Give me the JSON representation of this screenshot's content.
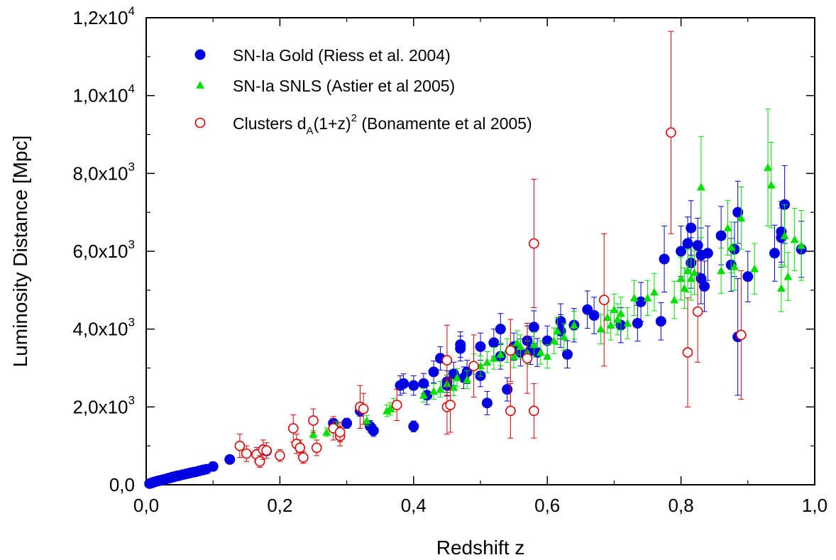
{
  "chart_data": {
    "type": "scatter",
    "xlabel": "Redshift z",
    "ylabel": "Luminosity Distance [Mpc]",
    "xlim": [
      0,
      1.0
    ],
    "ylim": [
      0,
      12000
    ],
    "x_ticks": [
      {
        "value": 0.0,
        "label": "0,0"
      },
      {
        "value": 0.2,
        "label": "0,2"
      },
      {
        "value": 0.4,
        "label": "0,4"
      },
      {
        "value": 0.6,
        "label": "0,6"
      },
      {
        "value": 0.8,
        "label": "0,8"
      },
      {
        "value": 1.0,
        "label": "1,0"
      }
    ],
    "y_ticks": [
      {
        "value": 0,
        "mantissa": "0,0",
        "exponent": ""
      },
      {
        "value": 2000,
        "mantissa": "2,0x10",
        "exponent": "3"
      },
      {
        "value": 4000,
        "mantissa": "4,0x10",
        "exponent": "3"
      },
      {
        "value": 6000,
        "mantissa": "6,0x10",
        "exponent": "3"
      },
      {
        "value": 8000,
        "mantissa": "8,0x10",
        "exponent": "3"
      },
      {
        "value": 10000,
        "mantissa": "1,0x10",
        "exponent": "4"
      },
      {
        "value": 12000,
        "mantissa": "1,2x10",
        "exponent": "4"
      }
    ],
    "grid": false,
    "legend_position": "top-left",
    "series": [
      {
        "name": "SN-Ia Gold (Riess et al. 2004)",
        "marker": "filled-circle",
        "color": "#0000e0",
        "points": [
          [
            0.005,
            30,
            5
          ],
          [
            0.008,
            45,
            5
          ],
          [
            0.01,
            60,
            5
          ],
          [
            0.012,
            70,
            5
          ],
          [
            0.015,
            85,
            5
          ],
          [
            0.018,
            100,
            6
          ],
          [
            0.02,
            105,
            6
          ],
          [
            0.022,
            115,
            6
          ],
          [
            0.025,
            130,
            7
          ],
          [
            0.028,
            140,
            7
          ],
          [
            0.03,
            150,
            7
          ],
          [
            0.032,
            160,
            8
          ],
          [
            0.035,
            175,
            8
          ],
          [
            0.038,
            185,
            9
          ],
          [
            0.04,
            200,
            9
          ],
          [
            0.043,
            210,
            10
          ],
          [
            0.046,
            225,
            10
          ],
          [
            0.05,
            240,
            11
          ],
          [
            0.055,
            260,
            12
          ],
          [
            0.06,
            280,
            13
          ],
          [
            0.065,
            300,
            14
          ],
          [
            0.07,
            320,
            15
          ],
          [
            0.075,
            335,
            15
          ],
          [
            0.08,
            360,
            16
          ],
          [
            0.085,
            380,
            17
          ],
          [
            0.09,
            400,
            18
          ],
          [
            0.1,
            470,
            20
          ],
          [
            0.125,
            650,
            40
          ],
          [
            0.175,
            900,
            60
          ],
          [
            0.18,
            870,
            60
          ],
          [
            0.28,
            1580,
            120
          ],
          [
            0.3,
            1580,
            130
          ],
          [
            0.32,
            1900,
            140
          ],
          [
            0.335,
            1500,
            150
          ],
          [
            0.34,
            1390,
            150
          ],
          [
            0.38,
            2550,
            250
          ],
          [
            0.385,
            2600,
            250
          ],
          [
            0.4,
            2550,
            250
          ],
          [
            0.4,
            1500,
            140
          ],
          [
            0.415,
            2600,
            260
          ],
          [
            0.42,
            2300,
            240
          ],
          [
            0.43,
            2900,
            280
          ],
          [
            0.44,
            3250,
            300
          ],
          [
            0.45,
            2650,
            280
          ],
          [
            0.45,
            2550,
            270
          ],
          [
            0.46,
            2850,
            300
          ],
          [
            0.47,
            3600,
            330
          ],
          [
            0.47,
            3500,
            320
          ],
          [
            0.475,
            2750,
            280
          ],
          [
            0.48,
            2900,
            300
          ],
          [
            0.5,
            3550,
            350
          ],
          [
            0.5,
            2800,
            280
          ],
          [
            0.51,
            2100,
            300
          ],
          [
            0.52,
            3650,
            350
          ],
          [
            0.53,
            4000,
            400
          ],
          [
            0.53,
            3300,
            330
          ],
          [
            0.54,
            2450,
            300
          ],
          [
            0.55,
            3550,
            350
          ],
          [
            0.56,
            3400,
            350
          ],
          [
            0.57,
            3700,
            380
          ],
          [
            0.575,
            3450,
            360
          ],
          [
            0.58,
            4050,
            420
          ],
          [
            0.585,
            3400,
            360
          ],
          [
            0.6,
            3700,
            380
          ],
          [
            0.62,
            4200,
            450
          ],
          [
            0.62,
            3950,
            420
          ],
          [
            0.63,
            3350,
            350
          ],
          [
            0.64,
            4100,
            430
          ],
          [
            0.66,
            4500,
            480
          ],
          [
            0.67,
            4350,
            470
          ],
          [
            0.71,
            4100,
            450
          ],
          [
            0.735,
            4150,
            460
          ],
          [
            0.74,
            4700,
            500
          ],
          [
            0.77,
            4200,
            480
          ],
          [
            0.775,
            5800,
            850
          ],
          [
            0.8,
            6000,
            650
          ],
          [
            0.81,
            6200,
            680
          ],
          [
            0.815,
            6600,
            700
          ],
          [
            0.815,
            5700,
            650
          ],
          [
            0.825,
            6150,
            700
          ],
          [
            0.83,
            5900,
            700
          ],
          [
            0.83,
            5300,
            650
          ],
          [
            0.835,
            5100,
            650
          ],
          [
            0.84,
            5950,
            700
          ],
          [
            0.86,
            6400,
            750
          ],
          [
            0.875,
            5650,
            680
          ],
          [
            0.88,
            6050,
            700
          ],
          [
            0.885,
            7000,
            800
          ],
          [
            0.885,
            3800,
            1500
          ],
          [
            0.9,
            5350,
            650
          ],
          [
            0.94,
            5950,
            720
          ],
          [
            0.95,
            6500,
            780
          ],
          [
            0.95,
            6350,
            760
          ],
          [
            0.955,
            7200,
            1000
          ],
          [
            0.98,
            6050,
            720
          ]
        ]
      },
      {
        "name": "SN-Ia SNLS (Astier et al 2005)",
        "marker": "filled-triangle",
        "color": "#00e000",
        "points": [
          [
            0.25,
            1300,
            100
          ],
          [
            0.27,
            1350,
            110
          ],
          [
            0.285,
            1500,
            120
          ],
          [
            0.33,
            1650,
            130
          ],
          [
            0.36,
            1900,
            150
          ],
          [
            0.365,
            1950,
            160
          ],
          [
            0.37,
            2050,
            170
          ],
          [
            0.415,
            2300,
            180
          ],
          [
            0.43,
            2400,
            200
          ],
          [
            0.44,
            2450,
            200
          ],
          [
            0.45,
            2600,
            220
          ],
          [
            0.46,
            2500,
            210
          ],
          [
            0.465,
            2750,
            230
          ],
          [
            0.48,
            2700,
            230
          ],
          [
            0.49,
            3100,
            260
          ],
          [
            0.5,
            3050,
            260
          ],
          [
            0.51,
            3150,
            270
          ],
          [
            0.52,
            3250,
            280
          ],
          [
            0.53,
            3350,
            290
          ],
          [
            0.54,
            3450,
            300
          ],
          [
            0.55,
            3300,
            290
          ],
          [
            0.555,
            3650,
            310
          ],
          [
            0.56,
            3550,
            300
          ],
          [
            0.57,
            3400,
            300
          ],
          [
            0.58,
            3600,
            320
          ],
          [
            0.59,
            3400,
            300
          ],
          [
            0.6,
            3300,
            300
          ],
          [
            0.61,
            3700,
            330
          ],
          [
            0.615,
            3950,
            350
          ],
          [
            0.625,
            3800,
            340
          ],
          [
            0.64,
            4100,
            360
          ],
          [
            0.68,
            4000,
            380
          ],
          [
            0.69,
            4300,
            400
          ],
          [
            0.695,
            4100,
            380
          ],
          [
            0.7,
            4500,
            400
          ],
          [
            0.705,
            4250,
            400
          ],
          [
            0.71,
            4400,
            420
          ],
          [
            0.72,
            4150,
            400
          ],
          [
            0.73,
            4800,
            450
          ],
          [
            0.75,
            4800,
            450
          ],
          [
            0.76,
            4950,
            480
          ],
          [
            0.79,
            4750,
            480
          ],
          [
            0.8,
            5300,
            550
          ],
          [
            0.805,
            5050,
            520
          ],
          [
            0.81,
            5500,
            550
          ],
          [
            0.815,
            5300,
            560
          ],
          [
            0.82,
            5450,
            560
          ],
          [
            0.83,
            7650,
            1300
          ],
          [
            0.86,
            5500,
            580
          ],
          [
            0.87,
            6600,
            700
          ],
          [
            0.875,
            6100,
            650
          ],
          [
            0.88,
            5600,
            600
          ],
          [
            0.89,
            6850,
            800
          ],
          [
            0.91,
            5550,
            650
          ],
          [
            0.93,
            8150,
            1500
          ],
          [
            0.935,
            7700,
            1100
          ],
          [
            0.95,
            5050,
            600
          ],
          [
            0.955,
            6400,
            800
          ],
          [
            0.96,
            5350,
            620
          ],
          [
            0.97,
            6300,
            800
          ],
          [
            0.98,
            6150,
            900
          ]
        ]
      },
      {
        "name": "Clusters",
        "name_subscript": "A",
        "name_suffix": "(1+z)",
        "name_superscript": "2",
        "name_tail": "(Bonamente et al 2005)",
        "name_prefix": "d",
        "marker": "open-circle",
        "color": "#e00000",
        "points": [
          [
            0.14,
            1000,
            300
          ],
          [
            0.15,
            800,
            200
          ],
          [
            0.165,
            780,
            180
          ],
          [
            0.17,
            600,
            150
          ],
          [
            0.175,
            900,
            250
          ],
          [
            0.18,
            880,
            200
          ],
          [
            0.2,
            750,
            150
          ],
          [
            0.22,
            1450,
            350
          ],
          [
            0.225,
            1050,
            250
          ],
          [
            0.23,
            950,
            200
          ],
          [
            0.235,
            700,
            150
          ],
          [
            0.25,
            1650,
            300
          ],
          [
            0.255,
            950,
            200
          ],
          [
            0.28,
            1450,
            300
          ],
          [
            0.29,
            1250,
            250
          ],
          [
            0.29,
            1350,
            250
          ],
          [
            0.32,
            2000,
            550
          ],
          [
            0.325,
            1950,
            400
          ],
          [
            0.375,
            2050,
            400
          ],
          [
            0.45,
            3200,
            900
          ],
          [
            0.45,
            2000,
            700
          ],
          [
            0.455,
            2050,
            700
          ],
          [
            0.49,
            3050,
            800
          ],
          [
            0.545,
            3450,
            800
          ],
          [
            0.545,
            1900,
            700
          ],
          [
            0.57,
            3250,
            900
          ],
          [
            0.58,
            6200,
            1650
          ],
          [
            0.58,
            1900,
            700
          ],
          [
            0.685,
            4750,
            1700
          ],
          [
            0.785,
            9050,
            2600
          ],
          [
            0.81,
            3400,
            1400
          ],
          [
            0.825,
            4450,
            1300
          ],
          [
            0.89,
            3850,
            1650
          ]
        ]
      }
    ]
  }
}
